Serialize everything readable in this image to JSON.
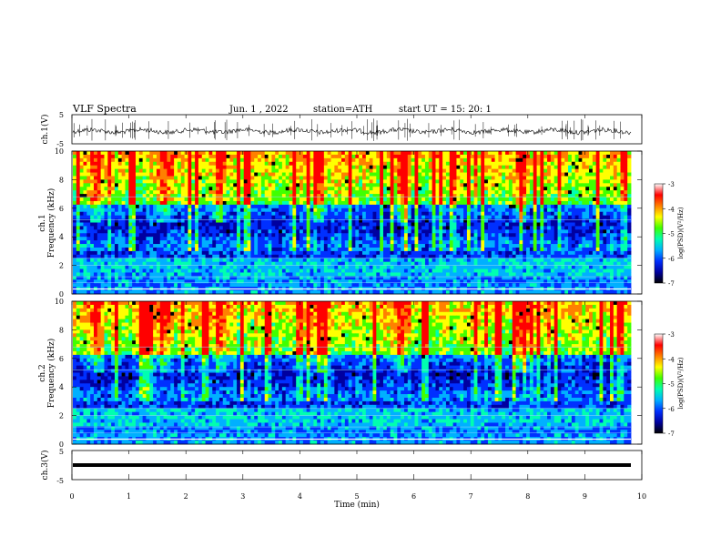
{
  "header": {
    "title": "VLF Spectra",
    "date": "Jun. 1 , 2022",
    "station": "station=ATH",
    "start_ut": "start UT =   15: 20: 1"
  },
  "chart_data": [
    {
      "type": "line",
      "panel": "ch1-waveform",
      "ylabel": "ch.1(V)",
      "ylim": [
        -5,
        5
      ],
      "yticks": [
        "5",
        "-5"
      ],
      "xlim": [
        0,
        10
      ]
    },
    {
      "type": "heatmap",
      "panel": "ch1-spectrogram",
      "ylabel_line1": "ch.1",
      "ylabel_line2": "Frequency (kHz)",
      "ylim": [
        0,
        10
      ],
      "yticks": [
        "10",
        "8",
        "6",
        "4",
        "2",
        "0"
      ],
      "xlim": [
        0,
        10
      ],
      "colorbar": {
        "label": "log(PSD)(V²/Hz)",
        "range": [
          -7,
          -3
        ],
        "ticks": [
          "-3",
          "-4",
          "-5",
          "-6",
          "-7"
        ]
      }
    },
    {
      "type": "heatmap",
      "panel": "ch2-spectrogram",
      "ylabel_line1": "ch.2",
      "ylabel_line2": "Frequency (kHz)",
      "ylim": [
        0,
        10
      ],
      "yticks": [
        "10",
        "8",
        "6",
        "4",
        "2",
        "0"
      ],
      "xlim": [
        0,
        10
      ],
      "colorbar": {
        "label": "log(PSD)(V²/Hz)",
        "range": [
          -7,
          -3
        ],
        "ticks": [
          "-3",
          "-4",
          "-5",
          "-6",
          "-7"
        ]
      }
    },
    {
      "type": "line",
      "panel": "ch3-waveform",
      "ylabel": "ch.3(V)",
      "ylim": [
        -5,
        5
      ],
      "yticks": [
        "5",
        "-5"
      ],
      "xlim": [
        0,
        10
      ],
      "xlabel": "Time (min)",
      "xticks": [
        "0",
        "1",
        "2",
        "3",
        "4",
        "5",
        "6",
        "7",
        "8",
        "9",
        "10"
      ]
    }
  ],
  "colors": {
    "colormap": [
      "#000000",
      "#0000a0",
      "#0030ff",
      "#00b0ff",
      "#00ffb0",
      "#40ff00",
      "#ffff00",
      "#ff8000",
      "#ff0000",
      "#ffffff"
    ],
    "trace": "#000000"
  }
}
